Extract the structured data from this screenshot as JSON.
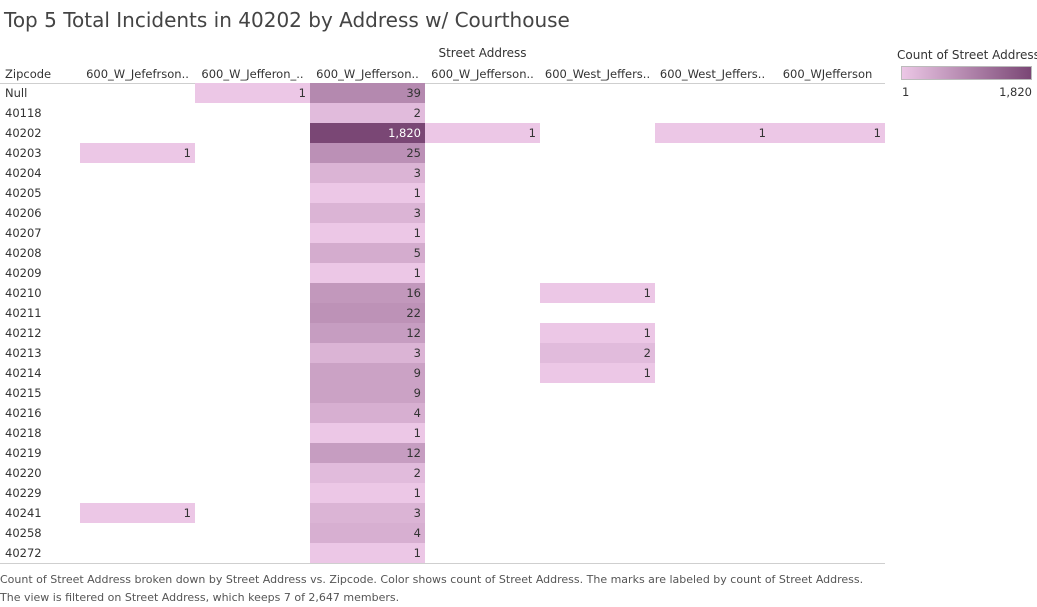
{
  "chart_data": {
    "type": "table",
    "title": "Top 5 Total Incidents in 40202 by Address w/ Courthouse",
    "column_group_label": "Street Address",
    "row_header": "Zipcode",
    "columns": [
      "600_W_Jefefrson..",
      "600_W_Jefferon_..",
      "600_W_Jefferson..",
      "600_W_Jefferson..",
      "600_West_Jeffers..",
      "600_West_Jeffers..",
      "600_WJefferson"
    ],
    "rows": [
      "Null",
      "40118",
      "40202",
      "40203",
      "40204",
      "40205",
      "40206",
      "40207",
      "40208",
      "40209",
      "40210",
      "40211",
      "40212",
      "40213",
      "40214",
      "40215",
      "40216",
      "40218",
      "40219",
      "40220",
      "40229",
      "40241",
      "40258",
      "40272"
    ],
    "cells": [
      {
        "row": 0,
        "col": 1,
        "value": 1,
        "label": "1"
      },
      {
        "row": 0,
        "col": 2,
        "value": 39,
        "label": "39"
      },
      {
        "row": 1,
        "col": 2,
        "value": 2,
        "label": "2"
      },
      {
        "row": 2,
        "col": 2,
        "value": 1820,
        "label": "1,820"
      },
      {
        "row": 2,
        "col": 3,
        "value": 1,
        "label": "1"
      },
      {
        "row": 2,
        "col": 5,
        "value": 1,
        "label": "1"
      },
      {
        "row": 2,
        "col": 6,
        "value": 1,
        "label": "1"
      },
      {
        "row": 3,
        "col": 0,
        "value": 1,
        "label": "1"
      },
      {
        "row": 3,
        "col": 2,
        "value": 25,
        "label": "25"
      },
      {
        "row": 4,
        "col": 2,
        "value": 3,
        "label": "3"
      },
      {
        "row": 5,
        "col": 2,
        "value": 1,
        "label": "1"
      },
      {
        "row": 6,
        "col": 2,
        "value": 3,
        "label": "3"
      },
      {
        "row": 7,
        "col": 2,
        "value": 1,
        "label": "1"
      },
      {
        "row": 8,
        "col": 2,
        "value": 5,
        "label": "5"
      },
      {
        "row": 9,
        "col": 2,
        "value": 1,
        "label": "1"
      },
      {
        "row": 10,
        "col": 2,
        "value": 16,
        "label": "16"
      },
      {
        "row": 10,
        "col": 4,
        "value": 1,
        "label": "1"
      },
      {
        "row": 11,
        "col": 2,
        "value": 22,
        "label": "22"
      },
      {
        "row": 12,
        "col": 2,
        "value": 12,
        "label": "12"
      },
      {
        "row": 12,
        "col": 4,
        "value": 1,
        "label": "1"
      },
      {
        "row": 13,
        "col": 2,
        "value": 3,
        "label": "3"
      },
      {
        "row": 13,
        "col": 4,
        "value": 2,
        "label": "2"
      },
      {
        "row": 14,
        "col": 2,
        "value": 9,
        "label": "9"
      },
      {
        "row": 14,
        "col": 4,
        "value": 1,
        "label": "1"
      },
      {
        "row": 15,
        "col": 2,
        "value": 9,
        "label": "9"
      },
      {
        "row": 16,
        "col": 2,
        "value": 4,
        "label": "4"
      },
      {
        "row": 17,
        "col": 2,
        "value": 1,
        "label": "1"
      },
      {
        "row": 18,
        "col": 2,
        "value": 12,
        "label": "12"
      },
      {
        "row": 19,
        "col": 2,
        "value": 2,
        "label": "2"
      },
      {
        "row": 20,
        "col": 2,
        "value": 1,
        "label": "1"
      },
      {
        "row": 21,
        "col": 0,
        "value": 1,
        "label": "1"
      },
      {
        "row": 21,
        "col": 2,
        "value": 3,
        "label": "3"
      },
      {
        "row": 22,
        "col": 2,
        "value": 4,
        "label": "4"
      },
      {
        "row": 23,
        "col": 2,
        "value": 1,
        "label": "1"
      }
    ],
    "legend": {
      "title": "Count of Street Address",
      "min": 1,
      "max": 1820,
      "min_label": "1",
      "max_label": "1,820",
      "placement": "top-right",
      "color_low": "#ecc7e6",
      "color_high": "#7a4775"
    },
    "caption": [
      "Count of Street Address broken down by Street Address vs. Zipcode.  Color shows count of Street Address.  The marks are labeled by count of Street Address.",
      "The view is filtered on Street Address, which keeps 7 of 2,647 members."
    ]
  }
}
